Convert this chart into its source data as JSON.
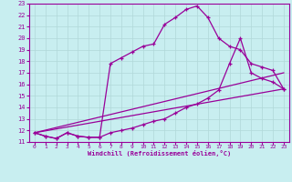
{
  "xlabel": "Windchill (Refroidissement éolien,°C)",
  "bg_color": "#c8eef0",
  "line_color": "#990099",
  "grid_color": "#b0d8d8",
  "x_ticks": [
    0,
    1,
    2,
    3,
    4,
    5,
    6,
    7,
    8,
    9,
    10,
    11,
    12,
    13,
    14,
    15,
    16,
    17,
    18,
    19,
    20,
    21,
    22,
    23
  ],
  "y_ticks": [
    11,
    12,
    13,
    14,
    15,
    16,
    17,
    18,
    19,
    20,
    21,
    22,
    23
  ],
  "xlim": [
    -0.5,
    23.5
  ],
  "ylim": [
    11,
    23
  ],
  "line1_x": [
    0,
    1,
    2,
    3,
    4,
    5,
    6,
    7,
    8,
    9,
    10,
    11,
    12,
    13,
    14,
    15,
    16,
    17,
    18,
    19,
    20,
    21,
    22,
    23
  ],
  "line1_y": [
    11.8,
    11.5,
    11.3,
    11.8,
    11.5,
    11.4,
    11.4,
    17.8,
    18.3,
    18.8,
    19.3,
    19.5,
    21.2,
    21.8,
    22.5,
    22.8,
    21.8,
    20.0,
    19.3,
    19.0,
    17.8,
    17.5,
    17.2,
    15.6
  ],
  "line2_x": [
    0,
    1,
    2,
    3,
    4,
    5,
    6,
    7,
    8,
    9,
    10,
    11,
    12,
    13,
    14,
    15,
    16,
    17,
    18,
    19,
    20,
    21,
    22,
    23
  ],
  "line2_y": [
    11.8,
    11.5,
    11.3,
    11.8,
    11.5,
    11.4,
    11.4,
    11.8,
    12.0,
    12.2,
    12.5,
    12.8,
    13.0,
    13.5,
    14.0,
    14.3,
    14.8,
    15.5,
    17.8,
    20.0,
    17.0,
    16.5,
    16.2,
    15.6
  ],
  "line3_x": [
    0,
    23
  ],
  "line3_y": [
    11.8,
    15.6
  ],
  "line4_x": [
    0,
    23
  ],
  "line4_y": [
    11.8,
    17.0
  ]
}
